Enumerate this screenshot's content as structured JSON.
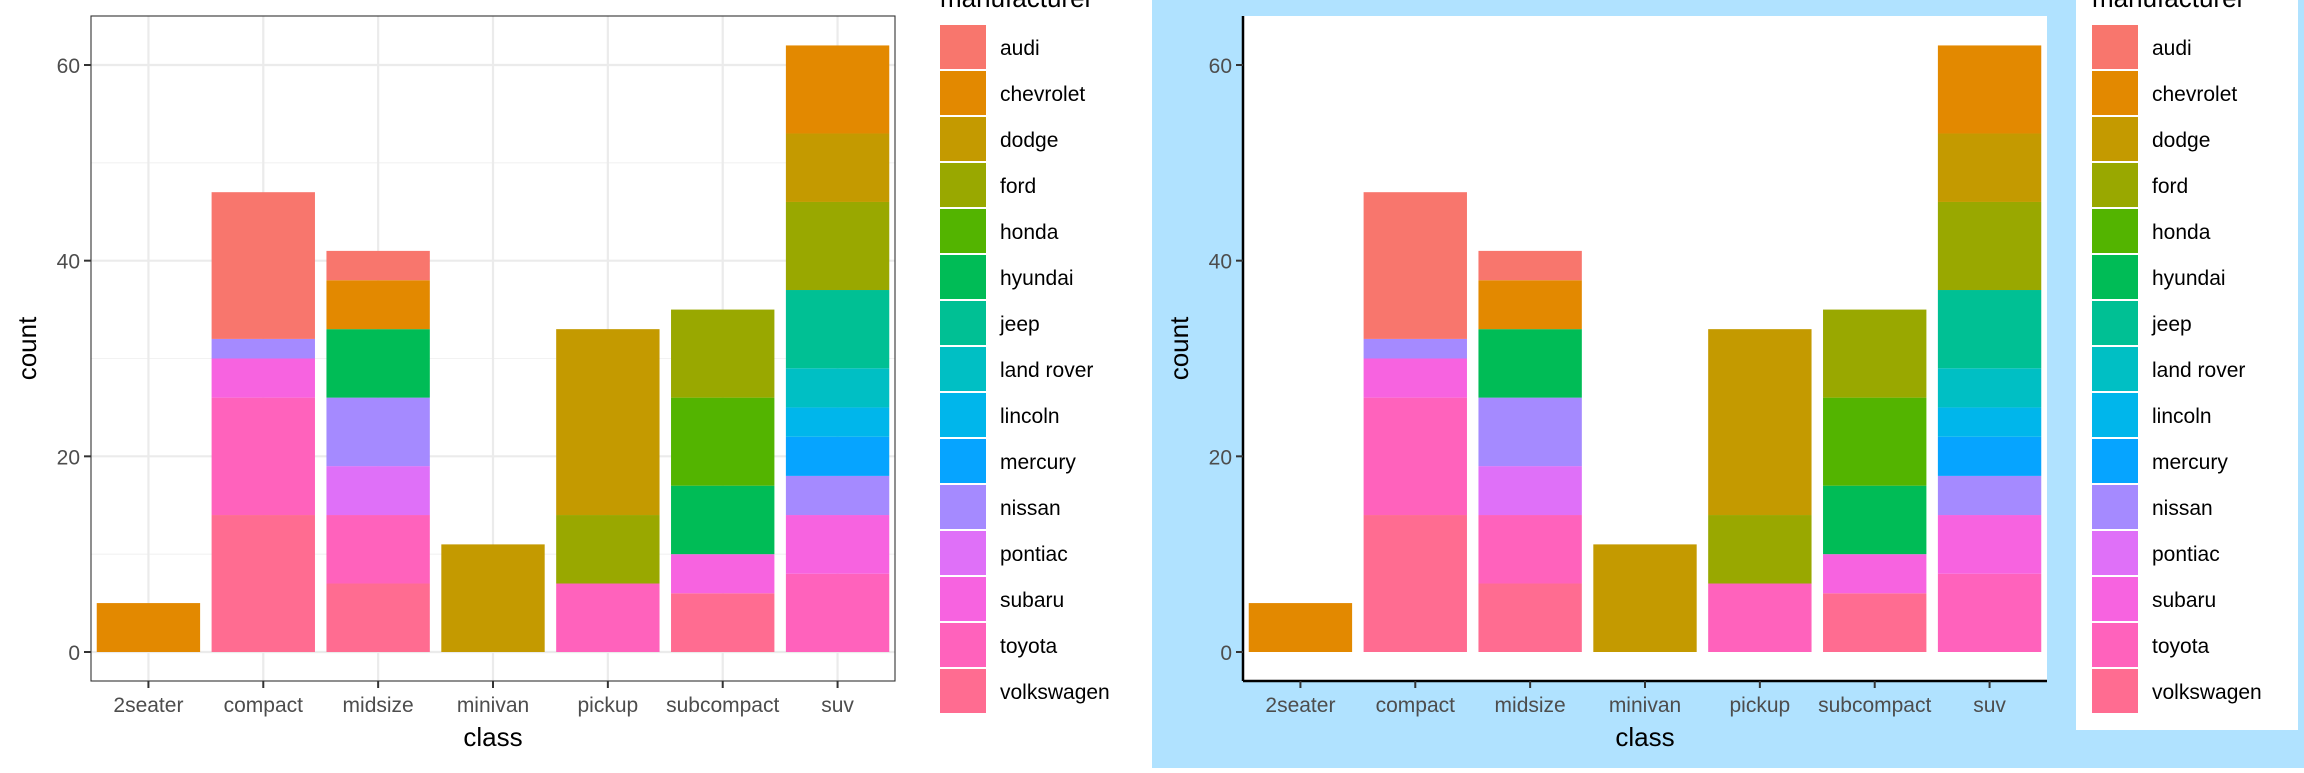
{
  "chart_data": [
    {
      "type": "bar",
      "stacked": true,
      "theme": "bw",
      "title": "",
      "xlabel": "class",
      "ylabel": "count",
      "ylim": [
        0,
        62
      ],
      "yticks": [
        0,
        20,
        40,
        60
      ],
      "grid": true,
      "legend_placement": "right",
      "legend_title": "manufacturer",
      "categories": [
        "2seater",
        "compact",
        "midsize",
        "minivan",
        "pickup",
        "subcompact",
        "suv"
      ],
      "series": [
        {
          "name": "audi",
          "color": "#F8766D",
          "values": [
            0,
            15,
            3,
            0,
            0,
            0,
            0
          ]
        },
        {
          "name": "chevrolet",
          "color": "#E38900",
          "values": [
            5,
            0,
            5,
            0,
            0,
            0,
            9
          ]
        },
        {
          "name": "dodge",
          "color": "#C49A00",
          "values": [
            0,
            0,
            0,
            11,
            19,
            0,
            7
          ]
        },
        {
          "name": "ford",
          "color": "#99A800",
          "values": [
            0,
            0,
            0,
            0,
            7,
            9,
            9
          ]
        },
        {
          "name": "honda",
          "color": "#53B400",
          "values": [
            0,
            0,
            0,
            0,
            0,
            9,
            0
          ]
        },
        {
          "name": "hyundai",
          "color": "#00BC56",
          "values": [
            0,
            0,
            7,
            0,
            0,
            7,
            0
          ]
        },
        {
          "name": "jeep",
          "color": "#00C094",
          "values": [
            0,
            0,
            0,
            0,
            0,
            0,
            8
          ]
        },
        {
          "name": "land rover",
          "color": "#00BFC4",
          "values": [
            0,
            0,
            0,
            0,
            0,
            0,
            4
          ]
        },
        {
          "name": "lincoln",
          "color": "#00B6EB",
          "values": [
            0,
            0,
            0,
            0,
            0,
            0,
            3
          ]
        },
        {
          "name": "mercury",
          "color": "#06A4FF",
          "values": [
            0,
            0,
            0,
            0,
            0,
            0,
            4
          ]
        },
        {
          "name": "nissan",
          "color": "#A58AFF",
          "values": [
            0,
            2,
            7,
            0,
            0,
            0,
            4
          ]
        },
        {
          "name": "pontiac",
          "color": "#DF70F8",
          "values": [
            0,
            0,
            5,
            0,
            0,
            0,
            0
          ]
        },
        {
          "name": "subaru",
          "color": "#F763E0",
          "values": [
            0,
            4,
            0,
            0,
            0,
            4,
            6
          ]
        },
        {
          "name": "toyota",
          "color": "#FF62BC",
          "values": [
            0,
            12,
            7,
            0,
            7,
            0,
            8
          ]
        },
        {
          "name": "volkswagen",
          "color": "#FF6C91",
          "values": [
            0,
            14,
            7,
            0,
            0,
            6,
            0
          ]
        }
      ]
    },
    {
      "type": "bar",
      "stacked": true,
      "theme": "classic",
      "title": "",
      "xlabel": "class",
      "ylabel": "count",
      "ylim": [
        0,
        62
      ],
      "yticks": [
        0,
        20,
        40,
        60
      ],
      "grid": false,
      "legend_placement": "right",
      "legend_title": "manufacturer",
      "background_color": "#B0E2FF",
      "categories": [
        "2seater",
        "compact",
        "midsize",
        "minivan",
        "pickup",
        "subcompact",
        "suv"
      ],
      "series": [
        {
          "name": "audi",
          "color": "#F8766D",
          "values": [
            0,
            15,
            3,
            0,
            0,
            0,
            0
          ]
        },
        {
          "name": "chevrolet",
          "color": "#E38900",
          "values": [
            5,
            0,
            5,
            0,
            0,
            0,
            9
          ]
        },
        {
          "name": "dodge",
          "color": "#C49A00",
          "values": [
            0,
            0,
            0,
            11,
            19,
            0,
            7
          ]
        },
        {
          "name": "ford",
          "color": "#99A800",
          "values": [
            0,
            0,
            0,
            0,
            7,
            9,
            9
          ]
        },
        {
          "name": "honda",
          "color": "#53B400",
          "values": [
            0,
            0,
            0,
            0,
            0,
            9,
            0
          ]
        },
        {
          "name": "hyundai",
          "color": "#00BC56",
          "values": [
            0,
            0,
            7,
            0,
            0,
            7,
            0
          ]
        },
        {
          "name": "jeep",
          "color": "#00C094",
          "values": [
            0,
            0,
            0,
            0,
            0,
            0,
            8
          ]
        },
        {
          "name": "land rover",
          "color": "#00BFC4",
          "values": [
            0,
            0,
            0,
            0,
            0,
            0,
            4
          ]
        },
        {
          "name": "lincoln",
          "color": "#00B6EB",
          "values": [
            0,
            0,
            0,
            0,
            0,
            0,
            3
          ]
        },
        {
          "name": "mercury",
          "color": "#06A4FF",
          "values": [
            0,
            0,
            0,
            0,
            0,
            0,
            4
          ]
        },
        {
          "name": "nissan",
          "color": "#A58AFF",
          "values": [
            0,
            2,
            7,
            0,
            0,
            0,
            4
          ]
        },
        {
          "name": "pontiac",
          "color": "#DF70F8",
          "values": [
            0,
            0,
            5,
            0,
            0,
            0,
            0
          ]
        },
        {
          "name": "subaru",
          "color": "#F763E0",
          "values": [
            0,
            4,
            0,
            0,
            0,
            4,
            6
          ]
        },
        {
          "name": "toyota",
          "color": "#FF62BC",
          "values": [
            0,
            12,
            7,
            0,
            7,
            0,
            8
          ]
        },
        {
          "name": "volkswagen",
          "color": "#FF6C91",
          "values": [
            0,
            14,
            7,
            0,
            0,
            6,
            0
          ]
        }
      ]
    }
  ]
}
